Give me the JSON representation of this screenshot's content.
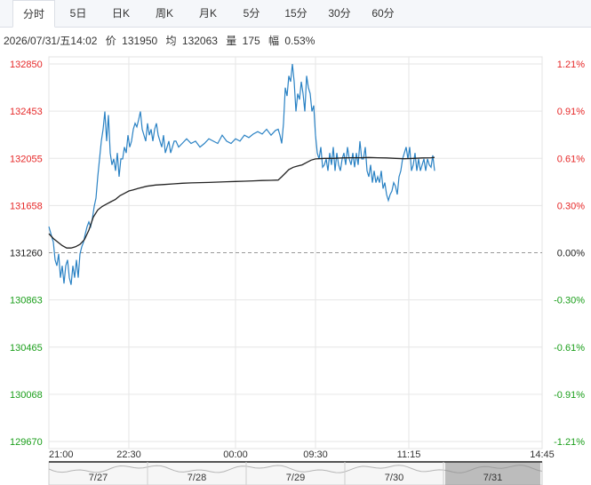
{
  "tabs": [
    {
      "label": "分时",
      "active": true
    },
    {
      "label": "5日",
      "active": false
    },
    {
      "label": "日K",
      "active": false
    },
    {
      "label": "周K",
      "active": false
    },
    {
      "label": "月K",
      "active": false
    },
    {
      "label": "5分",
      "active": false
    },
    {
      "label": "15分",
      "active": false
    },
    {
      "label": "30分",
      "active": false
    },
    {
      "label": "60分",
      "active": false
    }
  ],
  "info": {
    "datetime": "2026/07/31/五14:02",
    "price_label": "价",
    "price": "131950",
    "avg_label": "均",
    "avg": "132063",
    "vol_label": "量",
    "vol": "175",
    "amp_label": "幅",
    "amp": "0.53%"
  },
  "colors": {
    "up": "#e62828",
    "down": "#1a9e1a",
    "neutral": "#222222",
    "price_line": "#2a82c4",
    "avg_line": "#222222",
    "grid": "#e6e6e6",
    "baseline": "#999999"
  },
  "chart_data": {
    "type": "line",
    "title": "",
    "xlabel": "",
    "ylabel": "",
    "prev_close": 131260,
    "ylim": [
      129670,
      132850
    ],
    "y_ticks_left": [
      "132850",
      "132453",
      "132055",
      "131658",
      "131260",
      "130863",
      "130465",
      "130068",
      "129670"
    ],
    "y_ticks_right": [
      "1.21%",
      "0.91%",
      "0.61%",
      "0.30%",
      "0.00%",
      "-0.30%",
      "-0.61%",
      "-0.91%",
      "-1.21%"
    ],
    "x_ticks": [
      "21:00",
      "22:30",
      "00:00",
      "09:30",
      "11:15",
      "14:45"
    ],
    "x_range_minutes": [
      0,
      555
    ],
    "x_tick_minutes": [
      0,
      90,
      210,
      300,
      405,
      555
    ],
    "grid": true,
    "series": [
      {
        "key": "price",
        "points": [
          [
            0,
            131480
          ],
          [
            3,
            131400
          ],
          [
            5,
            131350
          ],
          [
            7,
            131200
          ],
          [
            9,
            131150
          ],
          [
            11,
            131250
          ],
          [
            13,
            131050
          ],
          [
            15,
            131150
          ],
          [
            17,
            131000
          ],
          [
            19,
            131150
          ],
          [
            21,
            131200
          ],
          [
            23,
            131050
          ],
          [
            25,
            130990
          ],
          [
            27,
            131150
          ],
          [
            29,
            131050
          ],
          [
            31,
            131200
          ],
          [
            33,
            131050
          ],
          [
            35,
            131250
          ],
          [
            37,
            131310
          ],
          [
            39,
            131350
          ],
          [
            41,
            131420
          ],
          [
            43,
            131480
          ],
          [
            45,
            131520
          ],
          [
            47,
            131480
          ],
          [
            49,
            131550
          ],
          [
            51,
            131650
          ],
          [
            53,
            131720
          ],
          [
            55,
            131900
          ],
          [
            57,
            132050
          ],
          [
            59,
            132200
          ],
          [
            61,
            132300
          ],
          [
            63,
            132450
          ],
          [
            65,
            132200
          ],
          [
            67,
            132420
          ],
          [
            69,
            132100
          ],
          [
            71,
            132000
          ],
          [
            73,
            132050
          ],
          [
            75,
            131950
          ],
          [
            77,
            132100
          ],
          [
            79,
            131900
          ],
          [
            81,
            132050
          ],
          [
            83,
            132050
          ],
          [
            85,
            132150
          ],
          [
            87,
            132100
          ],
          [
            89,
            132250
          ],
          [
            91,
            132150
          ],
          [
            93,
            132200
          ],
          [
            95,
            132300
          ],
          [
            97,
            132350
          ],
          [
            99,
            132320
          ],
          [
            101,
            132380
          ],
          [
            103,
            132450
          ],
          [
            105,
            132300
          ],
          [
            107,
            132250
          ],
          [
            109,
            132200
          ],
          [
            111,
            132350
          ],
          [
            113,
            132250
          ],
          [
            115,
            132300
          ],
          [
            117,
            132200
          ],
          [
            119,
            132300
          ],
          [
            121,
            132350
          ],
          [
            123,
            132250
          ],
          [
            125,
            132200
          ],
          [
            127,
            132150
          ],
          [
            129,
            132250
          ],
          [
            131,
            132100
          ],
          [
            133,
            132150
          ],
          [
            135,
            132200
          ],
          [
            137,
            132100
          ],
          [
            139,
            132150
          ],
          [
            141,
            132200
          ],
          [
            143,
            132200
          ],
          [
            146,
            132150
          ],
          [
            150,
            132180
          ],
          [
            155,
            132220
          ],
          [
            160,
            132180
          ],
          [
            165,
            132200
          ],
          [
            170,
            132150
          ],
          [
            175,
            132180
          ],
          [
            180,
            132220
          ],
          [
            185,
            132200
          ],
          [
            190,
            132180
          ],
          [
            195,
            132250
          ],
          [
            200,
            132200
          ],
          [
            205,
            132180
          ],
          [
            210,
            132220
          ],
          [
            215,
            132200
          ],
          [
            220,
            132250
          ],
          [
            225,
            132230
          ],
          [
            230,
            132260
          ],
          [
            235,
            132280
          ],
          [
            240,
            132260
          ],
          [
            245,
            132300
          ],
          [
            250,
            132250
          ],
          [
            255,
            132290
          ],
          [
            258,
            132300
          ],
          [
            260,
            132250
          ],
          [
            262,
            132180
          ],
          [
            264,
            132350
          ],
          [
            266,
            132650
          ],
          [
            268,
            132580
          ],
          [
            270,
            132750
          ],
          [
            272,
            132700
          ],
          [
            274,
            132850
          ],
          [
            276,
            132700
          ],
          [
            278,
            132450
          ],
          [
            280,
            132600
          ],
          [
            282,
            132550
          ],
          [
            284,
            132700
          ],
          [
            286,
            132600
          ],
          [
            288,
            132450
          ],
          [
            290,
            132750
          ],
          [
            292,
            132650
          ],
          [
            294,
            132600
          ],
          [
            296,
            132450
          ],
          [
            298,
            132500
          ],
          [
            300,
            132250
          ],
          [
            302,
            132100
          ],
          [
            304,
            132050
          ],
          [
            306,
            132150
          ],
          [
            308,
            131980
          ],
          [
            310,
            132000
          ],
          [
            312,
            132050
          ],
          [
            314,
            131950
          ],
          [
            316,
            132100
          ],
          [
            318,
            132000
          ],
          [
            320,
            132150
          ],
          [
            322,
            131950
          ],
          [
            324,
            132100
          ],
          [
            326,
            132000
          ],
          [
            328,
            131950
          ],
          [
            330,
            132050
          ],
          [
            332,
            132100
          ],
          [
            334,
            132000
          ],
          [
            336,
            132150
          ],
          [
            338,
            132050
          ],
          [
            340,
            132000
          ],
          [
            342,
            132100
          ],
          [
            344,
            131980
          ],
          [
            346,
            132100
          ],
          [
            348,
            132000
          ],
          [
            350,
            132200
          ],
          [
            352,
            132050
          ],
          [
            354,
            132050
          ],
          [
            356,
            132150
          ],
          [
            358,
            131950
          ],
          [
            360,
            131900
          ],
          [
            362,
            132000
          ],
          [
            364,
            131850
          ],
          [
            366,
            131950
          ],
          [
            368,
            131850
          ],
          [
            370,
            131900
          ],
          [
            372,
            131850
          ],
          [
            374,
            131950
          ],
          [
            376,
            131800
          ],
          [
            378,
            131850
          ],
          [
            380,
            131750
          ],
          [
            382,
            131700
          ],
          [
            384,
            131750
          ],
          [
            386,
            131780
          ],
          [
            388,
            131850
          ],
          [
            390,
            131820
          ],
          [
            392,
            131750
          ],
          [
            394,
            131900
          ],
          [
            396,
            131950
          ],
          [
            398,
            132050
          ],
          [
            400,
            132100
          ],
          [
            402,
            132150
          ],
          [
            404,
            132050
          ],
          [
            406,
            132150
          ],
          [
            408,
            131950
          ],
          [
            410,
            132000
          ],
          [
            412,
            132100
          ],
          [
            414,
            131950
          ],
          [
            416,
            132050
          ],
          [
            418,
            131950
          ],
          [
            420,
            132000
          ],
          [
            422,
            132050
          ],
          [
            424,
            131950
          ],
          [
            426,
            132050
          ],
          [
            428,
            132000
          ],
          [
            430,
            131980
          ],
          [
            432,
            132080
          ],
          [
            434,
            131950
          ]
        ]
      },
      {
        "key": "avg",
        "points": [
          [
            0,
            131420
          ],
          [
            5,
            131380
          ],
          [
            10,
            131350
          ],
          [
            15,
            131320
          ],
          [
            20,
            131300
          ],
          [
            25,
            131300
          ],
          [
            30,
            131310
          ],
          [
            35,
            131330
          ],
          [
            40,
            131370
          ],
          [
            45,
            131450
          ],
          [
            50,
            131560
          ],
          [
            55,
            131620
          ],
          [
            60,
            131650
          ],
          [
            65,
            131670
          ],
          [
            70,
            131690
          ],
          [
            75,
            131710
          ],
          [
            80,
            131740
          ],
          [
            85,
            131760
          ],
          [
            90,
            131780
          ],
          [
            95,
            131790
          ],
          [
            100,
            131800
          ],
          [
            110,
            131820
          ],
          [
            120,
            131830
          ],
          [
            130,
            131835
          ],
          [
            140,
            131840
          ],
          [
            150,
            131845
          ],
          [
            160,
            131848
          ],
          [
            170,
            131850
          ],
          [
            180,
            131852
          ],
          [
            190,
            131855
          ],
          [
            200,
            131858
          ],
          [
            210,
            131860
          ],
          [
            220,
            131862
          ],
          [
            230,
            131865
          ],
          [
            240,
            131868
          ],
          [
            250,
            131870
          ],
          [
            258,
            131872
          ],
          [
            262,
            131900
          ],
          [
            266,
            131930
          ],
          [
            270,
            131960
          ],
          [
            275,
            131980
          ],
          [
            280,
            131990
          ],
          [
            285,
            132000
          ],
          [
            290,
            132020
          ],
          [
            295,
            132040
          ],
          [
            300,
            132050
          ],
          [
            310,
            132055
          ],
          [
            320,
            132055
          ],
          [
            330,
            132058
          ],
          [
            340,
            132060
          ],
          [
            350,
            132060
          ],
          [
            360,
            132062
          ],
          [
            370,
            132060
          ],
          [
            380,
            132058
          ],
          [
            390,
            132055
          ],
          [
            400,
            132052
          ],
          [
            410,
            132055
          ],
          [
            420,
            132058
          ],
          [
            430,
            132060
          ],
          [
            434,
            132063
          ]
        ]
      }
    ]
  },
  "navigator": {
    "dates": [
      "7/27",
      "7/28",
      "7/29",
      "7/30",
      "7/31"
    ],
    "selected": "7/31"
  }
}
